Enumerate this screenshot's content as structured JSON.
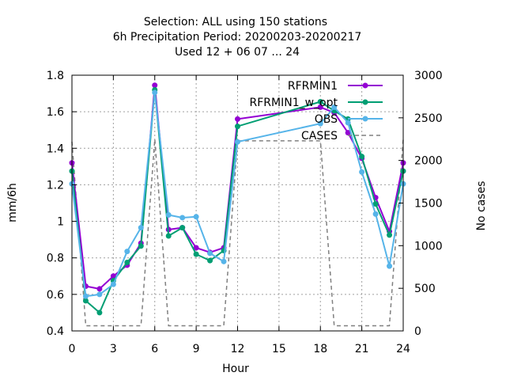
{
  "chart_data": {
    "type": "line",
    "title": [
      "Selection: ALL using   150 stations",
      "6h Precipitation   Period: 20200203-20200217",
      "Used  12 + 06 07 ... 24"
    ],
    "xlabel": "Hour",
    "ylabel": "mm/6h",
    "y2label": "No cases",
    "xlim": [
      0,
      24
    ],
    "ylim": [
      0.4,
      1.8
    ],
    "y2lim": [
      0,
      3000
    ],
    "xticks": [
      0,
      3,
      6,
      9,
      12,
      15,
      18,
      21,
      24
    ],
    "yticks": [
      "0.4",
      "0.6",
      "0.8",
      "1",
      "1.2",
      "1.4",
      "1.6",
      "1.8"
    ],
    "y2ticks": [
      "0",
      "500",
      "1000",
      "1500",
      "2000",
      "2500",
      "3000"
    ],
    "grid": true,
    "legend_position": "top-right",
    "series": [
      {
        "name": "RFRMIN1",
        "color": "#9400d3",
        "marker": "filled-circle",
        "x": [
          0,
          1,
          2,
          3,
          4,
          5,
          6,
          7,
          8,
          9,
          10,
          11,
          12,
          18,
          19,
          20,
          21,
          22,
          23,
          24
        ],
        "y": [
          1.32,
          0.645,
          0.63,
          0.7,
          0.76,
          0.88,
          1.745,
          0.955,
          0.965,
          0.855,
          0.83,
          0.855,
          1.56,
          1.625,
          1.595,
          1.485,
          1.345,
          1.13,
          0.945,
          1.32
        ]
      },
      {
        "name": "RFRMIN1_w_opt",
        "color": "#009e73",
        "marker": "filled-circle",
        "x": [
          0,
          1,
          2,
          3,
          4,
          5,
          6,
          7,
          8,
          9,
          10,
          11,
          12,
          18,
          19,
          20,
          21,
          22,
          23,
          24
        ],
        "y": [
          1.275,
          0.565,
          0.5,
          0.675,
          0.775,
          0.865,
          1.72,
          0.92,
          0.965,
          0.82,
          0.785,
          0.84,
          1.52,
          1.655,
          1.605,
          1.56,
          1.355,
          1.095,
          0.925,
          1.275
        ]
      },
      {
        "name": "OBS",
        "color": "#56b4e9",
        "marker": "filled-circle",
        "x": [
          0,
          1,
          2,
          3,
          4,
          5,
          6,
          7,
          8,
          9,
          10,
          11,
          12,
          18,
          19,
          20,
          21,
          22,
          23,
          24
        ],
        "y": [
          1.205,
          0.59,
          0.6,
          0.655,
          0.835,
          0.965,
          1.705,
          1.035,
          1.02,
          1.025,
          0.825,
          0.78,
          1.435,
          1.535,
          1.625,
          1.54,
          1.27,
          1.04,
          0.755,
          1.205
        ]
      },
      {
        "name": "CASES",
        "color": "#808080",
        "marker": "none",
        "dash": true,
        "axis": "y2",
        "x": [
          0,
          1,
          2,
          3,
          4,
          5,
          6,
          7,
          8,
          9,
          10,
          11,
          12,
          13,
          14,
          15,
          16,
          17,
          18,
          19,
          20,
          21,
          22,
          23,
          24
        ],
        "y": [
          2220,
          60,
          60,
          60,
          60,
          60,
          2250,
          60,
          60,
          60,
          60,
          60,
          2230,
          2230,
          2230,
          2230,
          2230,
          2230,
          2230,
          60,
          60,
          60,
          60,
          60,
          2250
        ]
      }
    ]
  }
}
